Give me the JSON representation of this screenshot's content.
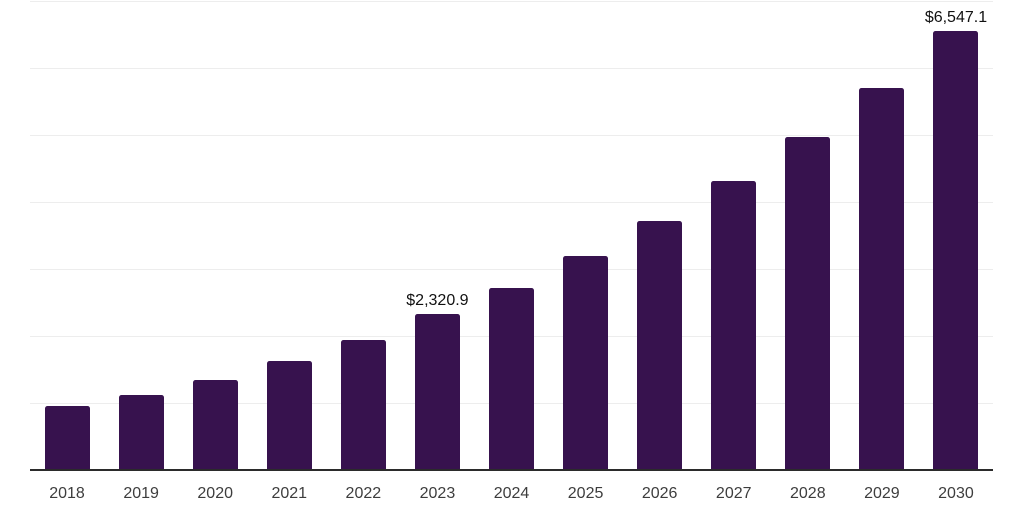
{
  "colors": {
    "bar": "#37124e",
    "gridline": "#ededed",
    "axis": "#2b2b2b",
    "tick_label": "#3d3d3d",
    "data_label": "#111111",
    "background": "#ffffff"
  },
  "chart_data": {
    "type": "bar",
    "title": "",
    "xlabel": "",
    "ylabel": "",
    "categories": [
      "2018",
      "2019",
      "2020",
      "2021",
      "2022",
      "2023",
      "2024",
      "2025",
      "2026",
      "2027",
      "2028",
      "2029",
      "2030"
    ],
    "values": [
      960,
      1120,
      1345,
      1625,
      1940,
      2320.9,
      2715,
      3190,
      3715,
      4310,
      4975,
      5705,
      6547.1
    ],
    "data_labels": {
      "2023": "$2,320.9",
      "2030": "$6,547.1"
    },
    "ylim": [
      0,
      7000
    ],
    "gridline_step": 1000,
    "grid": true,
    "legend": false,
    "y_axis_tick_labels_visible": false
  }
}
